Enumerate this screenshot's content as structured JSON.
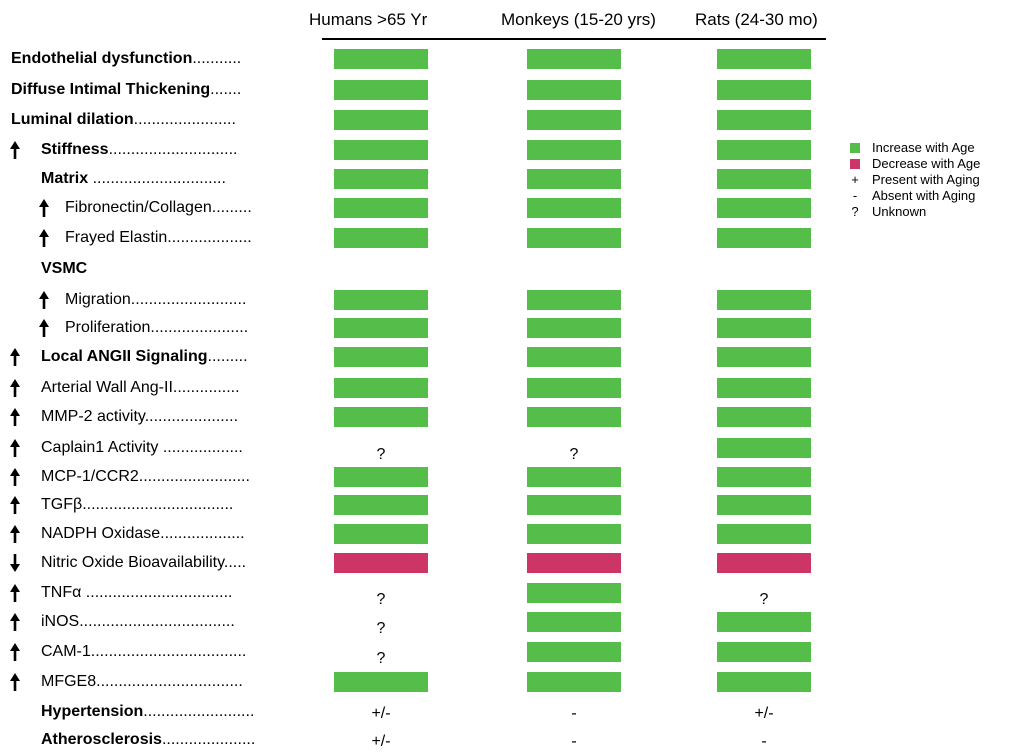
{
  "colors": {
    "increase": "#55be4b",
    "decrease": "#cc3565"
  },
  "headers": {
    "humans": "Humans >65 Yr",
    "monkeys": "Monkeys (15-20 yrs)",
    "rats": "Rats (24-30 mo)"
  },
  "legend": [
    {
      "kind": "swatch",
      "key": "increase",
      "text": "Increase with Age"
    },
    {
      "kind": "swatch",
      "key": "decrease",
      "text": "Decrease with Age"
    },
    {
      "kind": "symbol",
      "symbol": "+",
      "text": "Present with Aging"
    },
    {
      "kind": "symbol",
      "symbol": "-",
      "text": "Absent with Aging"
    },
    {
      "kind": "symbol",
      "symbol": "?",
      "text": "Unknown"
    }
  ],
  "rows": [
    {
      "arrow": "",
      "indent": 0,
      "bold": "Endothelial dysfunction",
      "rest": "...........",
      "humans": "inc",
      "monkeys": "inc",
      "rats": "inc"
    },
    {
      "arrow": "",
      "indent": 0,
      "bold": "Diffuse Intimal Thickening",
      "rest": ".......",
      "humans": "inc",
      "monkeys": "inc",
      "rats": "inc"
    },
    {
      "arrow": "",
      "indent": 0,
      "bold": "Luminal dilation",
      "rest": ".......................",
      "humans": "inc",
      "monkeys": "inc",
      "rats": "inc"
    },
    {
      "arrow": "up",
      "indent": 1,
      "bold": "Stiffness",
      "rest": ".............................",
      "humans": "inc",
      "monkeys": "inc",
      "rats": "inc"
    },
    {
      "arrow": "",
      "indent": 2,
      "bold": "Matrix",
      "rest": " ..............................",
      "humans": "inc",
      "monkeys": "inc",
      "rats": "inc"
    },
    {
      "arrow": "up2",
      "indent": 3,
      "bold": "",
      "rest": "Fibronectin/Collagen.........",
      "humans": "inc",
      "monkeys": "inc",
      "rats": "inc"
    },
    {
      "arrow": "up2",
      "indent": 3,
      "bold": "",
      "rest": "Frayed Elastin...................",
      "humans": "inc",
      "monkeys": "inc",
      "rats": "inc"
    },
    {
      "arrow": "",
      "indent": 2,
      "bold": "VSMC",
      "rest": "",
      "humans": "",
      "monkeys": "",
      "rats": ""
    },
    {
      "arrow": "up2",
      "indent": 3,
      "bold": "",
      "rest": "Migration..........................",
      "humans": "inc",
      "monkeys": "inc",
      "rats": "inc"
    },
    {
      "arrow": "up2",
      "indent": 3,
      "bold": "",
      "rest": "Proliferation......................",
      "humans": "inc",
      "monkeys": "inc",
      "rats": "inc"
    },
    {
      "arrow": "up",
      "indent": 1,
      "bold": "Local ANGII Signaling",
      "rest": ".........",
      "humans": "inc",
      "monkeys": "inc",
      "rats": "inc"
    },
    {
      "arrow": "up",
      "indent": 1,
      "bold": "",
      "rest": "Arterial Wall Ang-II...............",
      "humans": "inc",
      "monkeys": "inc",
      "rats": "inc"
    },
    {
      "arrow": "up",
      "indent": 1,
      "bold": "",
      "rest": "MMP-2 activity.....................",
      "humans": "inc",
      "monkeys": "inc",
      "rats": "inc"
    },
    {
      "arrow": "up",
      "indent": 1,
      "bold": "",
      "rest": "Caplain1 Activity ..................",
      "humans": "?",
      "monkeys": "?",
      "rats": "inc"
    },
    {
      "arrow": "up",
      "indent": 1,
      "bold": "",
      "rest": "MCP-1/CCR2.........................",
      "humans": "inc",
      "monkeys": "inc",
      "rats": "inc"
    },
    {
      "arrow": "up",
      "indent": 1,
      "bold": "",
      "rest": "TGFβ..................................",
      "humans": "inc",
      "monkeys": "inc",
      "rats": "inc"
    },
    {
      "arrow": "up",
      "indent": 1,
      "bold": "",
      "rest": "NADPH Oxidase...................",
      "humans": "inc",
      "monkeys": "inc",
      "rats": "inc"
    },
    {
      "arrow": "down",
      "indent": 1,
      "bold": "",
      "rest": "Nitric Oxide Bioavailability.....",
      "humans": "dec",
      "monkeys": "dec",
      "rats": "dec"
    },
    {
      "arrow": "up",
      "indent": 1,
      "bold": "",
      "rest": "TNFα .................................",
      "humans": "?",
      "monkeys": "inc",
      "rats": "?"
    },
    {
      "arrow": "up",
      "indent": 1,
      "bold": "",
      "rest": "iNOS...................................",
      "humans": "?",
      "monkeys": "inc",
      "rats": "inc"
    },
    {
      "arrow": "up",
      "indent": 1,
      "bold": "",
      "rest": "CAM-1...................................",
      "humans": "?",
      "monkeys": "inc",
      "rats": "inc"
    },
    {
      "arrow": "up",
      "indent": 1,
      "bold": "",
      "rest": "MFGE8.................................",
      "humans": "inc",
      "monkeys": "inc",
      "rats": "inc"
    },
    {
      "arrow": "",
      "indent": 2,
      "bold": "Hypertension",
      "rest": ".........................",
      "humans": "+/-",
      "monkeys": "-",
      "rats": "+/-"
    },
    {
      "arrow": "",
      "indent": 2,
      "bold": "Atherosclerosis",
      "rest": ".....................",
      "humans": "+/-",
      "monkeys": "-",
      "rats": "-"
    }
  ]
}
